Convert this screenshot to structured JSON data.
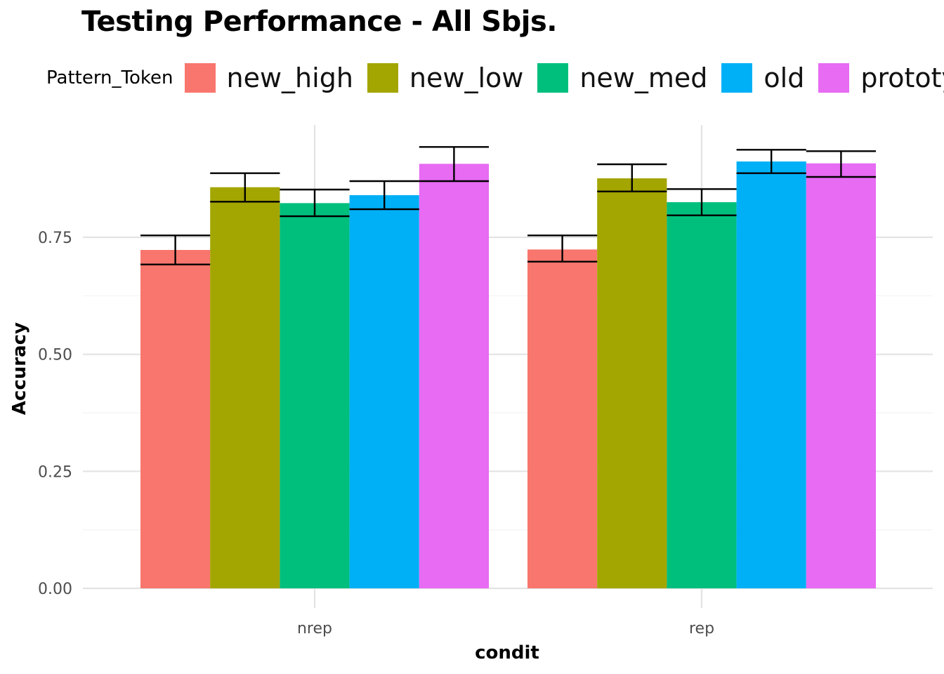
{
  "chart_data": {
    "type": "bar",
    "title": "Testing Performance - All Sbjs.",
    "xlabel": "condit",
    "ylabel": "Accuracy",
    "categories": [
      "nrep",
      "rep"
    ],
    "ylim": [
      0,
      1.0
    ],
    "yticks": [
      0.0,
      0.25,
      0.5,
      0.75
    ],
    "ytick_labels": [
      "0.00",
      "0.25",
      "0.50",
      "0.75"
    ],
    "grid": true,
    "legend": {
      "title": "Pattern_Token",
      "position": "top"
    },
    "series": [
      {
        "name": "new_high",
        "color": "#F8766D",
        "values": [
          0.723,
          0.724
        ],
        "err_low": [
          0.692,
          0.698
        ],
        "err_high": [
          0.754,
          0.754
        ]
      },
      {
        "name": "new_low",
        "color": "#A3A500",
        "values": [
          0.857,
          0.876
        ],
        "err_low": [
          0.826,
          0.848
        ],
        "err_high": [
          0.887,
          0.906
        ]
      },
      {
        "name": "new_med",
        "color": "#00BF7D",
        "values": [
          0.823,
          0.825
        ],
        "err_low": [
          0.795,
          0.797
        ],
        "err_high": [
          0.852,
          0.853
        ]
      },
      {
        "name": "old",
        "color": "#00B0F6",
        "values": [
          0.84,
          0.912
        ],
        "err_low": [
          0.81,
          0.887
        ],
        "err_high": [
          0.87,
          0.937
        ]
      },
      {
        "name": "prototype",
        "color": "#E76BF3",
        "values": [
          0.907,
          0.908
        ],
        "err_low": [
          0.87,
          0.879
        ],
        "err_high": [
          0.943,
          0.934
        ]
      }
    ]
  }
}
